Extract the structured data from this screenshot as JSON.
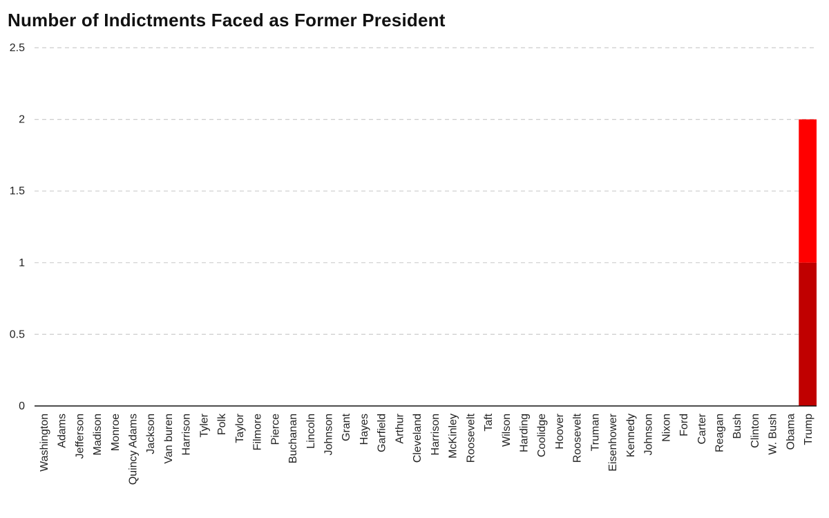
{
  "title": "Number of Indictments Faced as Former President",
  "chart_data": {
    "type": "bar",
    "stacked": true,
    "title": "Number of Indictments Faced as Former President",
    "xlabel": "",
    "ylabel": "",
    "ylim": [
      0,
      2.5
    ],
    "yticks": [
      0,
      0.5,
      1,
      1.5,
      2,
      2.5
    ],
    "ytick_labels": [
      "0",
      "0.5",
      "1",
      "1.5",
      "2",
      "2.5"
    ],
    "grid": true,
    "categories": [
      "Washington",
      "Adams",
      "Jefferson",
      "Madison",
      "Monroe",
      "Quincy Adams",
      "Jackson",
      "Van buren",
      "Harrison",
      "Tyler",
      "Polk",
      "Taylor",
      "Filmore",
      "Pierce",
      "Buchanan",
      "Lincoln",
      "Johnson",
      "Grant",
      "Hayes",
      "Garfield",
      "Arthur",
      "Cleveland",
      "Harrison",
      "McKinley",
      "Roosevelt",
      "Taft",
      "Wilson",
      "Harding",
      "Coolidge",
      "Hoover",
      "Roosevelt",
      "Truman",
      "Eisenhower",
      "Kennedy",
      "Johnson",
      "Nixon",
      "Ford",
      "Carter",
      "Reagan",
      "Bush",
      "Clinton",
      "W. Bush",
      "Obama",
      "Trump"
    ],
    "series": [
      {
        "values": [
          0,
          0,
          0,
          0,
          0,
          0,
          0,
          0,
          0,
          0,
          0,
          0,
          0,
          0,
          0,
          0,
          0,
          0,
          0,
          0,
          0,
          0,
          0,
          0,
          0,
          0,
          0,
          0,
          0,
          0,
          0,
          0,
          0,
          0,
          0,
          0,
          0,
          0,
          0,
          0,
          0,
          0,
          0,
          1
        ],
        "color": "#c00000"
      },
      {
        "values": [
          0,
          0,
          0,
          0,
          0,
          0,
          0,
          0,
          0,
          0,
          0,
          0,
          0,
          0,
          0,
          0,
          0,
          0,
          0,
          0,
          0,
          0,
          0,
          0,
          0,
          0,
          0,
          0,
          0,
          0,
          0,
          0,
          0,
          0,
          0,
          0,
          0,
          0,
          0,
          0,
          0,
          0,
          0,
          1
        ],
        "color": "#ff0000"
      }
    ]
  }
}
